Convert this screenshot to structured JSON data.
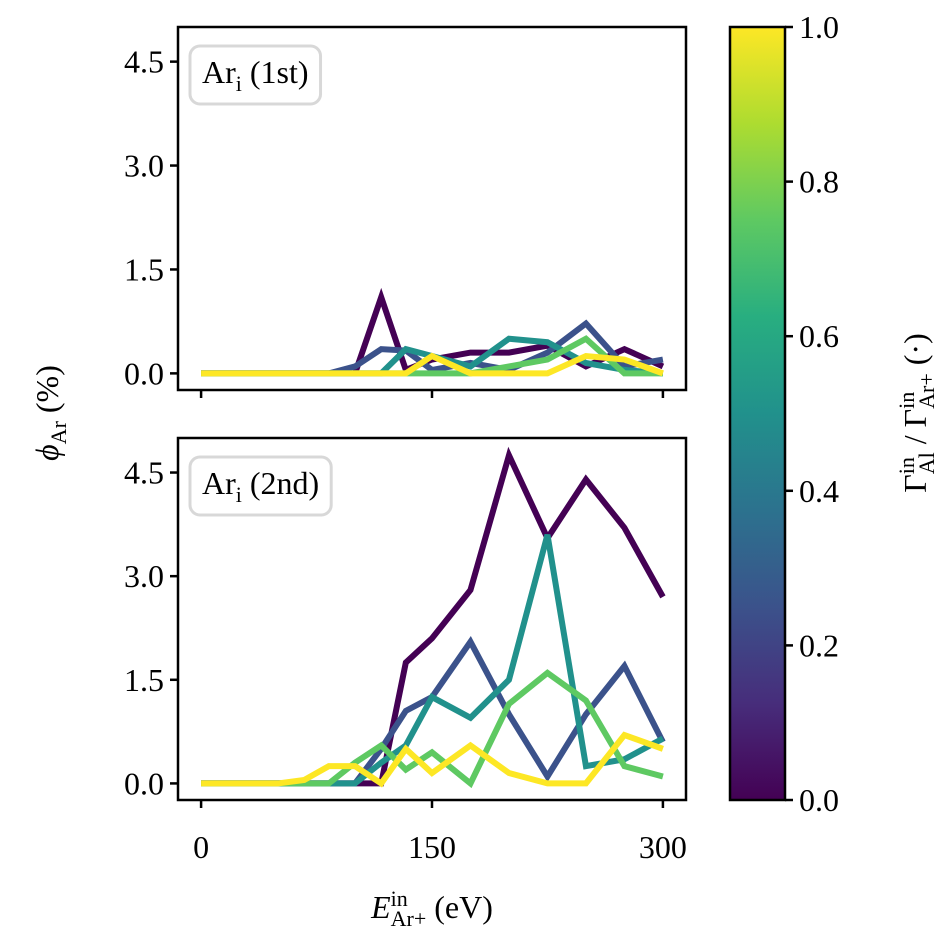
{
  "chart_data": [
    {
      "type": "line",
      "annotation": [
        {
          "text": "Ar"
        },
        {
          "text": "i",
          "shift": "sub"
        },
        {
          "text": " (1st)"
        }
      ],
      "x": [
        0,
        17,
        33,
        50,
        67,
        83,
        100,
        117,
        133,
        150,
        175,
        200,
        225,
        250,
        275,
        300
      ],
      "xlim": [
        -15,
        315
      ],
      "xticks": [
        0,
        150,
        300
      ],
      "show_xtick_labels": false,
      "ylim": [
        -0.24,
        5.0
      ],
      "yticks": [
        {
          "value": 0,
          "label": "0.0"
        },
        {
          "value": 1.5,
          "label": "1.5"
        },
        {
          "value": 3.0,
          "label": "3.0"
        },
        {
          "value": 4.5,
          "label": "4.5"
        }
      ],
      "series": [
        {
          "color": "#440154",
          "values": [
            0,
            0,
            0,
            0,
            0,
            0,
            0,
            1.1,
            0.05,
            0.2,
            0.3,
            0.3,
            0.4,
            0.1,
            0.35,
            0.1
          ]
        },
        {
          "color": "#3b528b",
          "values": [
            0,
            0,
            0,
            0,
            0,
            0,
            0.1,
            0.35,
            0.33,
            0.05,
            0.15,
            0.05,
            0.3,
            0.72,
            0.1,
            0.2
          ]
        },
        {
          "color": "#21918c",
          "values": [
            0,
            0,
            0,
            0,
            0,
            0,
            0,
            0,
            0.35,
            0.25,
            0.1,
            0.5,
            0.45,
            0.15,
            0.05,
            0
          ]
        },
        {
          "color": "#5ec962",
          "values": [
            0,
            0,
            0,
            0,
            0,
            0,
            0,
            0,
            0,
            0,
            0,
            0.1,
            0.2,
            0.5,
            0,
            0
          ]
        },
        {
          "color": "#fde725",
          "values": [
            0,
            0,
            0,
            0,
            0,
            0,
            0,
            0,
            0,
            0.25,
            0,
            0,
            0,
            0.25,
            0.2,
            0
          ]
        }
      ]
    },
    {
      "type": "line",
      "annotation": [
        {
          "text": "Ar"
        },
        {
          "text": "i",
          "shift": "sub"
        },
        {
          "text": " (2nd)"
        }
      ],
      "x": [
        0,
        17,
        33,
        50,
        67,
        83,
        100,
        117,
        133,
        150,
        175,
        200,
        225,
        250,
        275,
        300
      ],
      "xlim": [
        -15,
        315
      ],
      "xticks": [
        0,
        150,
        300
      ],
      "show_xtick_labels": true,
      "ylim": [
        -0.24,
        5.0
      ],
      "yticks": [
        {
          "value": 0,
          "label": "0.0"
        },
        {
          "value": 1.5,
          "label": "1.5"
        },
        {
          "value": 3.0,
          "label": "3.0"
        },
        {
          "value": 4.5,
          "label": "4.5"
        }
      ],
      "series": [
        {
          "color": "#440154",
          "values": [
            0,
            0,
            0,
            0,
            0,
            0,
            0,
            0,
            1.75,
            2.1,
            2.8,
            4.75,
            3.55,
            4.4,
            3.7,
            2.7
          ]
        },
        {
          "color": "#3b528b",
          "values": [
            0,
            0,
            0,
            0,
            0,
            0,
            0,
            0.5,
            1.05,
            1.25,
            2.05,
            1.0,
            0.1,
            1.0,
            1.7,
            0.6
          ]
        },
        {
          "color": "#21918c",
          "values": [
            0,
            0,
            0,
            0,
            0,
            0,
            0,
            0.3,
            0.55,
            1.25,
            0.95,
            1.5,
            3.6,
            0.25,
            0.35,
            0.65
          ]
        },
        {
          "color": "#5ec962",
          "values": [
            0,
            0,
            0,
            0,
            0,
            0,
            0.3,
            0.55,
            0.2,
            0.45,
            0,
            1.15,
            1.6,
            1.2,
            0.25,
            0.1
          ]
        },
        {
          "color": "#fde725",
          "values": [
            0,
            0,
            0,
            0,
            0.05,
            0.25,
            0.25,
            0,
            0.5,
            0.15,
            0.55,
            0.15,
            0,
            0,
            0.7,
            0.5
          ]
        }
      ]
    }
  ],
  "xlabel": [
    {
      "text": "E",
      "style": "italic"
    },
    {
      "text": "in",
      "shift": "sup"
    },
    {
      "text": "Ar+",
      "shift": "sub"
    },
    {
      "text": " (eV)"
    }
  ],
  "ylabel": [
    {
      "text": "ϕ",
      "style": "italic"
    },
    {
      "text": "Ar",
      "shift": "sub"
    },
    {
      "text": " (%)"
    }
  ],
  "colorbar": {
    "label": [
      {
        "text": "Γ"
      },
      {
        "text": "in",
        "shift": "sup"
      },
      {
        "text": "Al",
        "shift": "sub"
      },
      {
        "text": " / Γ"
      },
      {
        "text": "in",
        "shift": "sup"
      },
      {
        "text": "Ar+",
        "shift": "sub"
      },
      {
        "text": " (·)"
      }
    ],
    "clim": [
      0,
      1
    ],
    "ticks": [
      {
        "value": 0,
        "label": "0.0"
      },
      {
        "value": 0.2,
        "label": "0.2"
      },
      {
        "value": 0.4,
        "label": "0.4"
      },
      {
        "value": 0.6,
        "label": "0.6"
      },
      {
        "value": 0.8,
        "label": "0.8"
      },
      {
        "value": 1,
        "label": "1.0"
      }
    ],
    "colors": [
      "#440154",
      "#472d7b",
      "#3b528b",
      "#2c728e",
      "#21918c",
      "#28ae80",
      "#5ec962",
      "#addc30",
      "#fde725"
    ]
  }
}
